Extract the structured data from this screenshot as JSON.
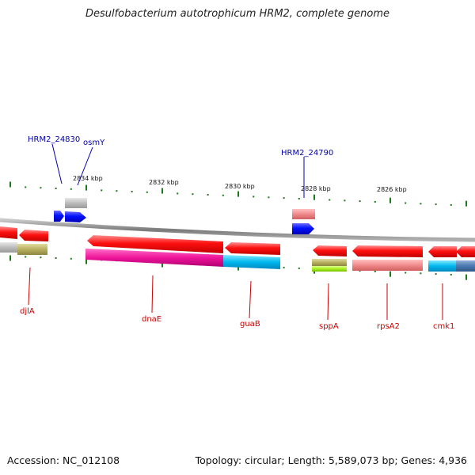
{
  "title": "Desulfobacterium autotrophicum HRM2, complete genome",
  "footer": {
    "accession": "Accession: NC_012108",
    "stats": "Topology: circular; Length: 5,589,073 bp; Genes: 4,936"
  },
  "colors": {
    "backbone": "#8a8a8a",
    "tick": "#1a7a1a",
    "plus_label": "#0000aa",
    "minus_label": "#cc0000"
  },
  "scale_labels": [
    "2834 kbp",
    "2832 kbp",
    "2830 kbp",
    "2828 kbp",
    "2826 kbp"
  ],
  "genes_plus": [
    {
      "label": "HRM2_24830"
    },
    {
      "label": "osmY"
    },
    {
      "label": "HRM2_24790"
    }
  ],
  "genes_minus": [
    {
      "label": "djlA"
    },
    {
      "label": "dnaE"
    },
    {
      "label": "guaB"
    },
    {
      "label": "sppA"
    },
    {
      "label": "rpsA2"
    },
    {
      "label": "cmk1"
    }
  ]
}
